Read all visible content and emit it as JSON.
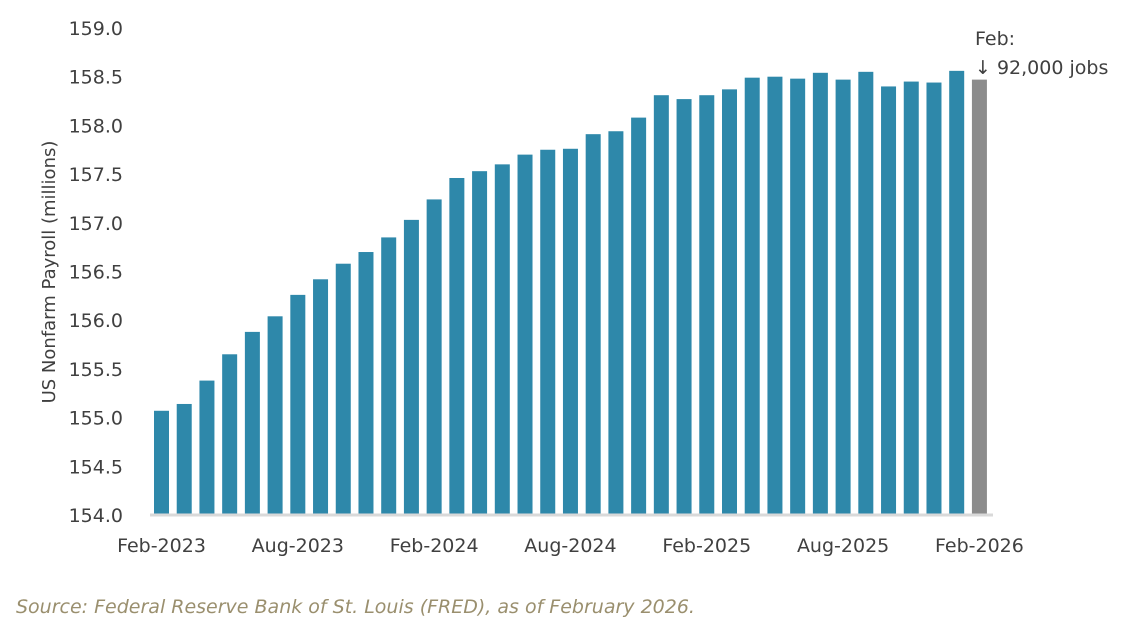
{
  "chart_data": {
    "type": "bar",
    "title": "",
    "xlabel": "",
    "ylabel": "US Nonfarm Payroll (millions)",
    "ylim": [
      154.0,
      159.0
    ],
    "yticks": [
      "154.0",
      "154.5",
      "155.0",
      "155.5",
      "156.0",
      "156.5",
      "157.0",
      "157.5",
      "158.0",
      "158.5",
      "159.0"
    ],
    "grid": false,
    "legend": null,
    "xtick_labels": [
      {
        "index": 0,
        "label": "Feb-2023"
      },
      {
        "index": 6,
        "label": "Aug-2023"
      },
      {
        "index": 12,
        "label": "Feb-2024"
      },
      {
        "index": 18,
        "label": "Aug-2024"
      },
      {
        "index": 24,
        "label": "Feb-2025"
      },
      {
        "index": 30,
        "label": "Aug-2025"
      },
      {
        "index": 36,
        "label": "Feb-2026"
      }
    ],
    "categories": [
      "Feb-2023",
      "Mar-2023",
      "Apr-2023",
      "May-2023",
      "Jun-2023",
      "Jul-2023",
      "Aug-2023",
      "Sep-2023",
      "Oct-2023",
      "Nov-2023",
      "Dec-2023",
      "Jan-2024",
      "Feb-2024",
      "Mar-2024",
      "Apr-2024",
      "May-2024",
      "Jun-2024",
      "Jul-2024",
      "Aug-2024",
      "Sep-2024",
      "Oct-2024",
      "Nov-2024",
      "Dec-2024",
      "Jan-2025",
      "Feb-2025",
      "Mar-2025",
      "Apr-2025",
      "May-2025",
      "Jun-2025",
      "Jul-2025",
      "Aug-2025",
      "Sep-2025",
      "Oct-2025",
      "Nov-2025",
      "Dec-2025",
      "Jan-2026",
      "Feb-2026"
    ],
    "values": [
      155.07,
      155.14,
      155.38,
      155.65,
      155.88,
      156.04,
      156.26,
      156.42,
      156.58,
      156.7,
      156.85,
      157.03,
      157.24,
      157.46,
      157.53,
      157.6,
      157.7,
      157.75,
      157.76,
      157.91,
      157.94,
      158.08,
      158.31,
      158.27,
      158.31,
      158.37,
      158.49,
      158.5,
      158.48,
      158.54,
      158.47,
      158.55,
      158.4,
      158.45,
      158.44,
      158.56,
      158.47
    ],
    "highlight_index": 36,
    "colors": {
      "bar": "#2e88aa",
      "highlight": "#8c8c8c",
      "axis": "#d9d9d9"
    },
    "annotation": {
      "line1": "Feb:",
      "line2": "↓ 92,000 jobs"
    }
  },
  "footer": {
    "source": "Source: Federal Reserve Bank of St. Louis (FRED), as of February 2026."
  }
}
